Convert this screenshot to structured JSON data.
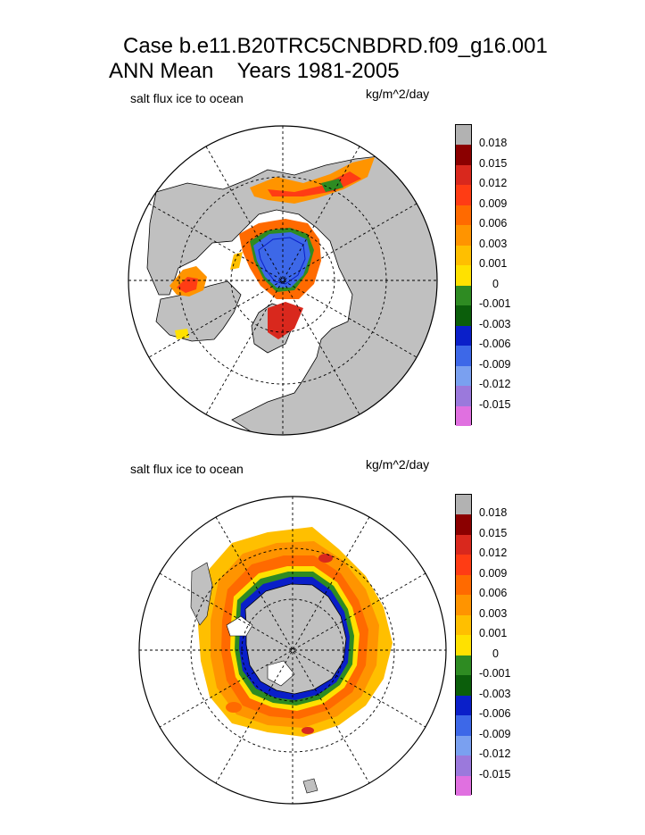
{
  "title": {
    "case": "Case b.e11.B20TRC5CNBDRD.f09_g16.001",
    "period": "ANN Mean    Years 1981-2005"
  },
  "panels": [
    {
      "id": "north",
      "variable_label": "salt flux ice to ocean",
      "units_label": "kg/m^2/day"
    },
    {
      "id": "south",
      "variable_label": "salt flux ice to ocean",
      "units_label": "kg/m^2/day"
    }
  ],
  "legend": {
    "labels": [
      "0.018",
      "0.015",
      "0.012",
      "0.009",
      "0.006",
      "0.003",
      "0.001",
      "0",
      "-0.001",
      "-0.003",
      "-0.006",
      "-0.009",
      "-0.012",
      "-0.015"
    ],
    "colors": [
      "#b2b2b2",
      "#8b0000",
      "#d9281d",
      "#ff3c14",
      "#ff6a00",
      "#ff9400",
      "#ffbf00",
      "#ffe100",
      "#2e8b22",
      "#0b5e0b",
      "#0a1fc9",
      "#3d68e8",
      "#7aa0f0",
      "#9b79dc",
      "#e070e0"
    ]
  },
  "colors": {
    "land": "#c0c0c0",
    "ocean_open": "#ffffff",
    "grid": "#000000"
  }
}
